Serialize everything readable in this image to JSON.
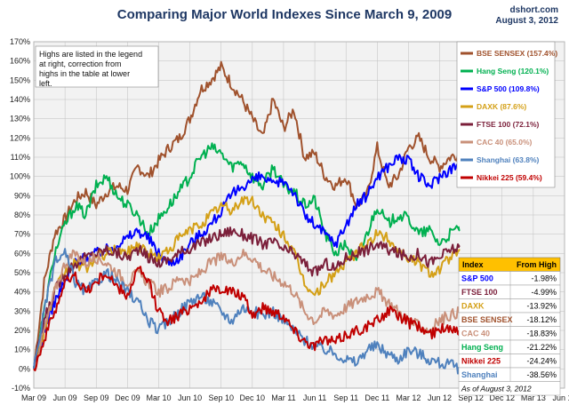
{
  "title": "Comparing Major World Indexes Since March 9, 2009",
  "source": "dshort.com",
  "date_label": "August 3, 2012",
  "note": "Highs are listed in the legend at right, correction from highs in the table at lower left.",
  "colors": {
    "plot_bg": "#f2f2f2",
    "grid": "#bfbfbf",
    "title": "#1f3864"
  },
  "chart_data": {
    "type": "line",
    "title": "Comparing Major World Indexes Since March 9, 2009",
    "ylim": [
      -10,
      170
    ],
    "y_ticks": [
      "-10%",
      "0%",
      "10%",
      "20%",
      "30%",
      "40%",
      "50%",
      "60%",
      "70%",
      "80%",
      "90%",
      "100%",
      "110%",
      "120%",
      "130%",
      "140%",
      "150%",
      "160%",
      "170%"
    ],
    "x_ticks": [
      "Mar 09",
      "Jun 09",
      "Sep 09",
      "Dec 09",
      "Mar 10",
      "Jun 10",
      "Sep 10",
      "Dec 10",
      "Mar 11",
      "Jun 11",
      "Sep 11",
      "Dec 11",
      "Mar 12",
      "Jun 12",
      "Sep 12",
      "Dec 12",
      "Mar 13",
      "Jun 13"
    ],
    "grid": true,
    "legend_position": "right",
    "series": [
      {
        "name": "BSE SENSEX",
        "legend": "BSE SENSEX (157.4%)",
        "color": "#a0522d",
        "x": [
          0,
          1,
          2,
          3,
          4,
          5,
          6,
          7,
          8,
          9,
          10,
          11,
          12,
          13,
          14,
          15,
          16,
          17,
          18,
          19,
          20,
          21,
          22,
          23,
          24,
          25,
          26,
          27,
          28,
          29,
          30,
          31,
          32,
          33,
          34,
          35,
          36,
          37,
          38,
          39,
          40,
          41,
          40.8
        ],
        "y": [
          0,
          45,
          70,
          78,
          88,
          92,
          85,
          92,
          95,
          93,
          105,
          100,
          108,
          115,
          120,
          130,
          145,
          150,
          157,
          148,
          140,
          130,
          120,
          140,
          125,
          135,
          110,
          112,
          100,
          95,
          100,
          85,
          90,
          115,
          95,
          100,
          115,
          120,
          110,
          105,
          110,
          112,
          111
        ]
      },
      {
        "name": "Hang Seng",
        "legend": "Hang Seng (120.1%)",
        "color": "#00b050",
        "x": [
          0,
          1,
          2,
          3,
          4,
          5,
          6,
          7,
          8,
          9,
          10,
          11,
          12,
          13,
          14,
          15,
          16,
          17,
          18,
          19,
          20,
          21,
          22,
          23,
          24,
          25,
          26,
          27,
          28,
          29,
          30,
          31,
          32,
          33,
          34,
          35,
          36,
          37,
          38,
          39,
          40,
          41,
          40.8
        ],
        "y": [
          0,
          30,
          60,
          75,
          85,
          80,
          95,
          100,
          90,
          85,
          80,
          70,
          78,
          85,
          92,
          100,
          110,
          115,
          112,
          105,
          108,
          100,
          95,
          105,
          95,
          92,
          85,
          88,
          70,
          60,
          65,
          55,
          70,
          85,
          75,
          80,
          78,
          70,
          72,
          65,
          70,
          74,
          74
        ]
      },
      {
        "name": "S&P 500",
        "legend": "S&P 500 (109.8%)",
        "color": "#0000ff",
        "x": [
          0,
          1,
          2,
          3,
          4,
          5,
          6,
          7,
          8,
          9,
          10,
          11,
          12,
          13,
          14,
          15,
          16,
          17,
          18,
          19,
          20,
          21,
          22,
          23,
          24,
          25,
          26,
          27,
          28,
          29,
          30,
          31,
          32,
          33,
          34,
          35,
          36,
          37,
          38,
          39,
          40,
          41,
          40.8
        ],
        "y": [
          0,
          20,
          35,
          45,
          55,
          58,
          60,
          62,
          65,
          68,
          72,
          68,
          60,
          55,
          58,
          65,
          70,
          75,
          82,
          90,
          95,
          98,
          100,
          95,
          98,
          92,
          80,
          75,
          70,
          65,
          75,
          85,
          90,
          100,
          105,
          110,
          108,
          100,
          95,
          100,
          104,
          106,
          105
        ]
      },
      {
        "name": "DAXK",
        "legend": "DAXK (87.6%)",
        "color": "#d4a017",
        "x": [
          0,
          1,
          2,
          3,
          4,
          5,
          6,
          7,
          8,
          9,
          10,
          11,
          12,
          13,
          14,
          15,
          16,
          17,
          18,
          19,
          20,
          21,
          22,
          23,
          24,
          25,
          26,
          27,
          28,
          29,
          30,
          31,
          32,
          33,
          34,
          35,
          36,
          37,
          38,
          39,
          40,
          41,
          40.8
        ],
        "y": [
          0,
          20,
          40,
          50,
          55,
          52,
          58,
          60,
          62,
          60,
          65,
          60,
          58,
          62,
          68,
          72,
          75,
          80,
          85,
          82,
          88,
          87,
          80,
          75,
          70,
          60,
          45,
          38,
          45,
          50,
          55,
          60,
          65,
          70,
          68,
          62,
          58,
          55,
          50,
          52,
          58,
          60,
          61
        ]
      },
      {
        "name": "FTSE 100",
        "legend": "FTSE 100 (72.1%)",
        "color": "#7b1f3a",
        "x": [
          0,
          1,
          2,
          3,
          4,
          5,
          6,
          7,
          8,
          9,
          10,
          11,
          12,
          13,
          14,
          15,
          16,
          17,
          18,
          19,
          20,
          21,
          22,
          23,
          24,
          25,
          26,
          27,
          28,
          29,
          30,
          31,
          32,
          33,
          34,
          35,
          36,
          37,
          38,
          39,
          40,
          41,
          40.8
        ],
        "y": [
          0,
          25,
          40,
          50,
          55,
          58,
          60,
          62,
          60,
          58,
          62,
          58,
          55,
          57,
          60,
          63,
          65,
          68,
          70,
          72,
          70,
          68,
          65,
          66,
          62,
          60,
          55,
          50,
          55,
          52,
          58,
          60,
          62,
          65,
          62,
          60,
          58,
          60,
          55,
          58,
          62,
          63,
          63
        ]
      },
      {
        "name": "CAC 40",
        "legend": "CAC 40 (65.0%)",
        "color": "#c9907a",
        "x": [
          0,
          1,
          2,
          3,
          4,
          5,
          6,
          7,
          8,
          9,
          10,
          11,
          12,
          13,
          14,
          15,
          16,
          17,
          18,
          19,
          20,
          21,
          22,
          23,
          24,
          25,
          26,
          27,
          28,
          29,
          30,
          31,
          32,
          33,
          34,
          35,
          36,
          37,
          38,
          39,
          40,
          41,
          40.8
        ],
        "y": [
          0,
          20,
          40,
          55,
          60,
          55,
          58,
          55,
          50,
          45,
          50,
          45,
          40,
          42,
          48,
          45,
          50,
          55,
          58,
          55,
          60,
          58,
          52,
          48,
          45,
          40,
          30,
          25,
          30,
          28,
          32,
          35,
          38,
          40,
          35,
          30,
          25,
          22,
          20,
          25,
          28,
          30,
          30
        ]
      },
      {
        "name": "Shanghai",
        "legend": "Shanghai (63.8%)",
        "color": "#4f81bd",
        "x": [
          0,
          1,
          2,
          3,
          4,
          5,
          6,
          7,
          8,
          9,
          10,
          11,
          12,
          13,
          14,
          15,
          16,
          17,
          18,
          19,
          20,
          21,
          22,
          23,
          24,
          25,
          26,
          27,
          28,
          29,
          30,
          31,
          32,
          33,
          34,
          35,
          36,
          37,
          38,
          39,
          40,
          41,
          40.8
        ],
        "y": [
          0,
          30,
          55,
          60,
          45,
          40,
          45,
          50,
          45,
          40,
          35,
          25,
          20,
          25,
          30,
          35,
          38,
          35,
          30,
          25,
          32,
          30,
          28,
          30,
          25,
          20,
          15,
          12,
          10,
          8,
          5,
          3,
          10,
          12,
          8,
          5,
          10,
          8,
          5,
          3,
          2,
          0,
          1
        ]
      },
      {
        "name": "Nikkei 225",
        "legend": "Nikkei 225 (59.4%)",
        "color": "#c00000",
        "x": [
          0,
          1,
          2,
          3,
          4,
          5,
          6,
          7,
          8,
          9,
          10,
          11,
          12,
          13,
          14,
          15,
          16,
          17,
          18,
          19,
          20,
          21,
          22,
          23,
          24,
          25,
          26,
          27,
          28,
          29,
          30,
          31,
          32,
          33,
          34,
          35,
          36,
          37,
          38,
          39,
          40,
          41,
          40.8
        ],
        "y": [
          0,
          15,
          30,
          45,
          48,
          40,
          45,
          50,
          42,
          38,
          52,
          45,
          30,
          25,
          28,
          32,
          35,
          40,
          42,
          40,
          38,
          28,
          32,
          30,
          28,
          20,
          15,
          12,
          15,
          14,
          18,
          20,
          22,
          25,
          30,
          28,
          24,
          22,
          18,
          20,
          22,
          20,
          20
        ]
      }
    ]
  },
  "table": {
    "headers": [
      "Index",
      "From High"
    ],
    "rows": [
      {
        "name": "S&P 500",
        "value": "-1.98%",
        "color": "#0000ff"
      },
      {
        "name": "FTSE 100",
        "value": "-4.99%",
        "color": "#7b1f3a"
      },
      {
        "name": "DAXK",
        "value": "-13.92%",
        "color": "#d4a017"
      },
      {
        "name": "BSE SENSEX",
        "value": "-18.12%",
        "color": "#a0522d"
      },
      {
        "name": "CAC 40",
        "value": "-18.83%",
        "color": "#c9907a"
      },
      {
        "name": "Hang Seng",
        "value": "-21.22%",
        "color": "#00b050"
      },
      {
        "name": "Nikkei 225",
        "value": "-24.24%",
        "color": "#c00000"
      },
      {
        "name": "Shanghai",
        "value": "-38.56%",
        "color": "#4f81bd"
      }
    ],
    "footnote": "As of August 3, 2012"
  }
}
